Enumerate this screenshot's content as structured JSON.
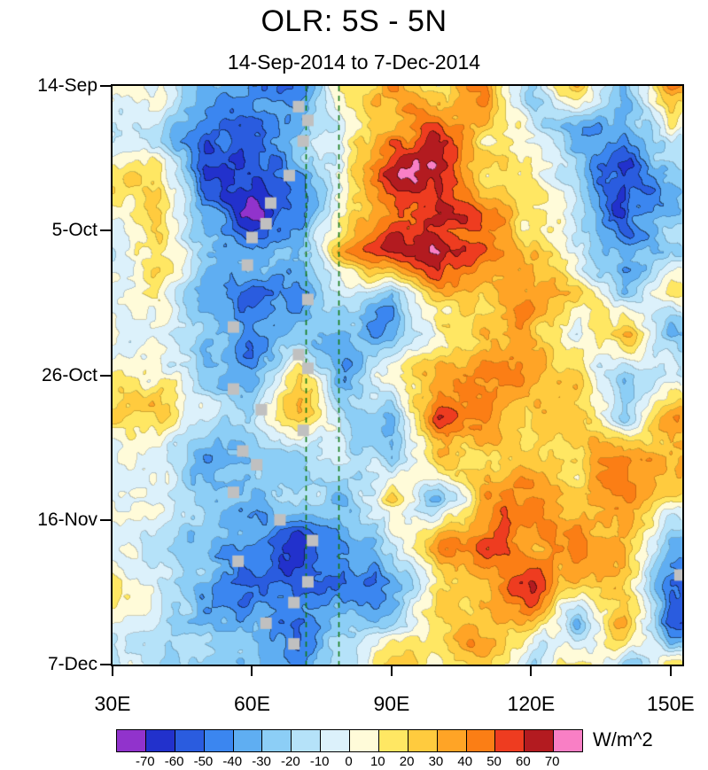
{
  "chart_data": {
    "type": "heatmap",
    "title": "OLR: 5S - 5N",
    "subtitle": "14-Sep-2014 to 7-Dec-2014",
    "units": "W/m^2",
    "x_tick_labels": [
      "30E",
      "60E",
      "90E",
      "120E",
      "150E"
    ],
    "x_tick_lons": [
      30,
      60,
      90,
      120,
      150
    ],
    "y_tick_labels": [
      "14-Sep",
      "5-Oct",
      "26-Oct",
      "16-Nov",
      "7-Dec"
    ],
    "y_tick_days": [
      0,
      21,
      42,
      63,
      84
    ],
    "x_range": [
      30,
      152.5
    ],
    "y_range_days": [
      0,
      84
    ],
    "levels": [
      -70,
      -60,
      -50,
      -40,
      -30,
      -20,
      -10,
      0,
      10,
      20,
      30,
      40,
      50,
      60,
      70
    ],
    "colorbar_labels": [
      "-70",
      "-60",
      "-50",
      "-40",
      "-30",
      "-20",
      "-10",
      "0",
      "10",
      "20",
      "30",
      "40",
      "50",
      "60",
      "70"
    ],
    "colors": [
      "#9133CC",
      "#2231CC",
      "#2A5CDF",
      "#3B86F0",
      "#5FAEF2",
      "#8CCEF6",
      "#B5E2F9",
      "#DCF1FB",
      "#FFFBD9",
      "#FFE763",
      "#FFCB3E",
      "#FFA426",
      "#FB7E15",
      "#EE3C20",
      "#B31B20",
      "#F97FC5"
    ],
    "grid": {
      "lons": [
        30,
        40,
        50,
        60,
        70,
        80,
        90,
        100,
        110,
        120,
        130,
        140,
        150
      ],
      "days": [
        0,
        6,
        12,
        18,
        24,
        30,
        36,
        42,
        48,
        54,
        60,
        66,
        72,
        78,
        84
      ],
      "values": [
        [
          5,
          -10,
          -20,
          -38,
          -32,
          2,
          28,
          8,
          32,
          -14,
          18,
          -32,
          22
        ],
        [
          6,
          -6,
          -48,
          -58,
          -35,
          6,
          32,
          46,
          26,
          -12,
          -32,
          -52,
          4
        ],
        [
          8,
          6,
          -66,
          -56,
          -30,
          16,
          52,
          58,
          28,
          12,
          -38,
          -48,
          -24
        ],
        [
          5,
          12,
          -36,
          -62,
          -46,
          -6,
          42,
          56,
          40,
          16,
          -22,
          -55,
          -30
        ],
        [
          5,
          10,
          -16,
          -42,
          -32,
          28,
          50,
          58,
          36,
          24,
          -12,
          -42,
          -18
        ],
        [
          5,
          0,
          -34,
          -66,
          -48,
          -18,
          -28,
          26,
          18,
          30,
          28,
          -36,
          24
        ],
        [
          6,
          -10,
          -26,
          -40,
          -22,
          -42,
          -26,
          12,
          36,
          22,
          -16,
          26,
          -32
        ],
        [
          5,
          8,
          -18,
          -32,
          26,
          -36,
          16,
          32,
          55,
          26,
          12,
          -46,
          -16
        ],
        [
          5,
          10,
          -14,
          -26,
          18,
          -22,
          -32,
          62,
          42,
          16,
          28,
          -26,
          32
        ],
        [
          4,
          6,
          -22,
          -36,
          -16,
          12,
          -36,
          36,
          22,
          32,
          22,
          36,
          42
        ],
        [
          5,
          -8,
          -16,
          -32,
          -22,
          -32,
          22,
          -16,
          36,
          42,
          26,
          38,
          30
        ],
        [
          5,
          5,
          -26,
          -46,
          -62,
          -48,
          -22,
          26,
          46,
          30,
          40,
          30,
          -36
        ],
        [
          6,
          -15,
          -32,
          -56,
          -48,
          -56,
          -32,
          16,
          30,
          46,
          34,
          24,
          -62
        ],
        [
          5,
          0,
          -42,
          -36,
          -52,
          -32,
          -16,
          32,
          22,
          36,
          -22,
          32,
          -68
        ],
        [
          5,
          -10,
          -26,
          -32,
          -42,
          -22,
          26,
          12,
          36,
          -16,
          26,
          -36,
          22
        ]
      ]
    },
    "reference_lines": {
      "color": "#157A15",
      "style": "dashed",
      "lons": [
        71.5,
        78.5
      ]
    },
    "markers": {
      "color": "#C0C0C0",
      "shape": "square",
      "points": [
        [
          3,
          70
        ],
        [
          5,
          72
        ],
        [
          8,
          71
        ],
        [
          13,
          68
        ],
        [
          17,
          64
        ],
        [
          20,
          63
        ],
        [
          22,
          60
        ],
        [
          26,
          59
        ],
        [
          31,
          72
        ],
        [
          35,
          56
        ],
        [
          39,
          70
        ],
        [
          41,
          72
        ],
        [
          44,
          56
        ],
        [
          47,
          62
        ],
        [
          50,
          71
        ],
        [
          53,
          58
        ],
        [
          55,
          61
        ],
        [
          59,
          56
        ],
        [
          63,
          66
        ],
        [
          66,
          73
        ],
        [
          69,
          57
        ],
        [
          71,
          152
        ],
        [
          72,
          72
        ],
        [
          75,
          69
        ],
        [
          78,
          63
        ],
        [
          81,
          69
        ]
      ]
    }
  }
}
